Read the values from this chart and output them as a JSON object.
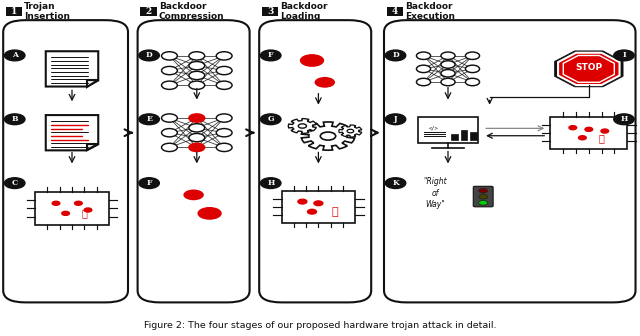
{
  "title": "Figure 2: The four stages of our proposed hardware trojan attack in detail.",
  "bg_color": "#ffffff",
  "red_color": "#dd0000",
  "black_color": "#111111",
  "gray_color": "#888888",
  "lgray_color": "#cccccc",
  "box_fills": "#ffffff",
  "box_edge": "#1a1a1a",
  "stage_headers": [
    {
      "num": "1",
      "label": "Trojan\nInsertion",
      "bx": 0.005,
      "by": 0.1,
      "bw": 0.195,
      "bh": 0.84
    },
    {
      "num": "2",
      "label": "Backdoor\nCompression",
      "bx": 0.215,
      "by": 0.1,
      "bw": 0.175,
      "bh": 0.84
    },
    {
      "num": "3",
      "label": "Backdoor\nLoading",
      "bx": 0.405,
      "by": 0.1,
      "bw": 0.175,
      "bh": 0.84
    },
    {
      "num": "4",
      "label": "Backdoor\nExecution",
      "bx": 0.6,
      "by": 0.1,
      "bw": 0.393,
      "bh": 0.84
    }
  ]
}
